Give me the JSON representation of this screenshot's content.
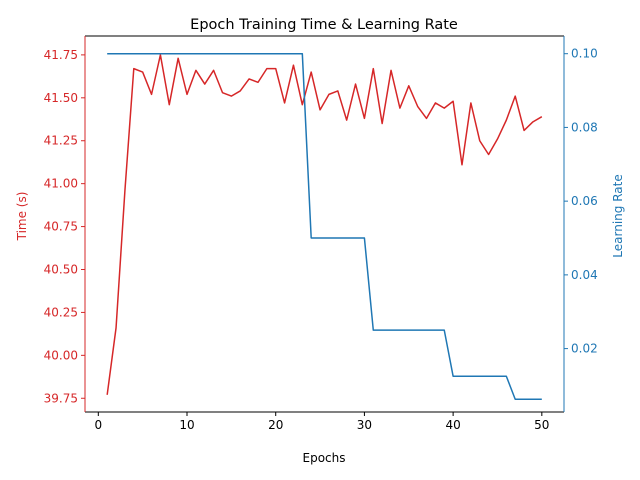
{
  "chart_data": {
    "type": "line",
    "title": "Epoch Training Time & Learning Rate",
    "xlabel": "Epochs",
    "ylabel_left": "Time (s)",
    "ylabel_right": "Learning Rate",
    "xlim": [
      -1.5,
      52.5
    ],
    "ylim_left": [
      39.67,
      41.86
    ],
    "ylim_right": [
      0.0028,
      0.1048
    ],
    "x_ticks": [
      0,
      10,
      20,
      30,
      40,
      50
    ],
    "y_ticks_left": [
      39.75,
      40.0,
      40.25,
      40.5,
      40.75,
      41.0,
      41.25,
      41.5,
      41.75
    ],
    "y_tick_labels_left": [
      "39.75",
      "40.00",
      "40.25",
      "40.50",
      "40.75",
      "41.00",
      "41.25",
      "41.50",
      "41.75"
    ],
    "y_ticks_right": [
      0.02,
      0.04,
      0.06,
      0.08,
      0.1
    ],
    "y_tick_labels_right": [
      "0.02",
      "0.04",
      "0.06",
      "0.08",
      "0.10"
    ],
    "colors": {
      "left": "#d62728",
      "right": "#1f77b4"
    },
    "grid": false,
    "x": [
      1,
      2,
      3,
      4,
      5,
      6,
      7,
      8,
      9,
      10,
      11,
      12,
      13,
      14,
      15,
      16,
      17,
      18,
      19,
      20,
      21,
      22,
      23,
      24,
      25,
      26,
      27,
      28,
      29,
      30,
      31,
      32,
      33,
      34,
      35,
      36,
      37,
      38,
      39,
      40,
      41,
      42,
      43,
      44,
      45,
      46,
      47,
      48,
      49,
      50
    ],
    "series": [
      {
        "axis": "left",
        "values": [
          39.77,
          40.16,
          40.96,
          41.67,
          41.65,
          41.52,
          41.75,
          41.46,
          41.73,
          41.52,
          41.66,
          41.58,
          41.66,
          41.53,
          41.51,
          41.54,
          41.61,
          41.59,
          41.67,
          41.67,
          41.47,
          41.69,
          41.46,
          41.65,
          41.43,
          41.52,
          41.54,
          41.37,
          41.58,
          41.38,
          41.67,
          41.35,
          41.66,
          41.44,
          41.57,
          41.45,
          41.38,
          41.47,
          41.44,
          41.48,
          41.11,
          41.47,
          41.25,
          41.17,
          41.26,
          41.37,
          41.51,
          41.31,
          41.36,
          41.39
        ]
      },
      {
        "axis": "right",
        "values": [
          0.1,
          0.1,
          0.1,
          0.1,
          0.1,
          0.1,
          0.1,
          0.1,
          0.1,
          0.1,
          0.1,
          0.1,
          0.1,
          0.1,
          0.1,
          0.1,
          0.1,
          0.1,
          0.1,
          0.1,
          0.1,
          0.1,
          0.1,
          0.05,
          0.05,
          0.05,
          0.05,
          0.05,
          0.05,
          0.05,
          0.025,
          0.025,
          0.025,
          0.025,
          0.025,
          0.025,
          0.025,
          0.025,
          0.025,
          0.0125,
          0.0125,
          0.0125,
          0.0125,
          0.0125,
          0.0125,
          0.0125,
          0.00625,
          0.00625,
          0.00625,
          0.00625
        ]
      }
    ]
  }
}
